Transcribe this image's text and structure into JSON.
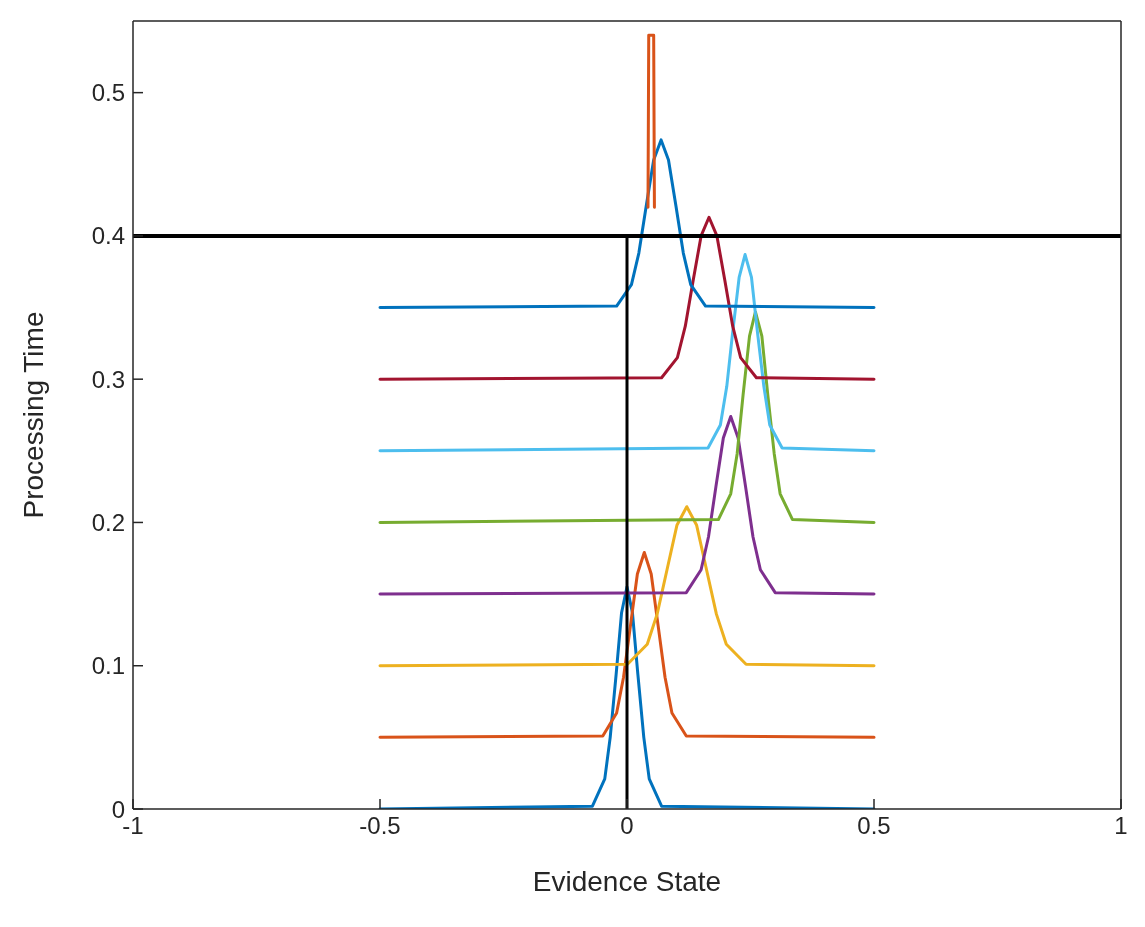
{
  "chart_data": {
    "type": "line",
    "xlabel": "Evidence State",
    "ylabel": "Processing Time",
    "xlim": [
      -1,
      1
    ],
    "xticks": [
      -1,
      -0.5,
      0,
      0.5,
      1
    ],
    "ylim": [
      0,
      0.55
    ],
    "yticks": [
      0,
      0.1,
      0.2,
      0.3,
      0.4,
      0.5
    ],
    "grid": false,
    "legend": false,
    "marker": "none",
    "line_style": "solid",
    "ref_lines": [
      {
        "axis": "y",
        "value": 0.4,
        "color": "#000000"
      }
    ],
    "series": [
      {
        "color": "#0072bd",
        "x": [
          -0.5,
          -0.07,
          -0.045,
          -0.034,
          -0.022,
          -0.011,
          0,
          0.011,
          0.022,
          0.034,
          0.045,
          0.07,
          0.5
        ],
        "values": [
          0,
          0.002,
          0.021,
          0.05,
          0.094,
          0.137,
          0.155,
          0.137,
          0.094,
          0.05,
          0.021,
          0.002,
          0
        ]
      },
      {
        "color": "#d95319",
        "x": [
          -0.5,
          -0.049,
          -0.021,
          -0.007,
          0.007,
          0.021,
          0.035,
          0.049,
          0.063,
          0.077,
          0.091,
          0.12,
          0.5
        ],
        "values": [
          0.05,
          0.051,
          0.067,
          0.092,
          0.128,
          0.164,
          0.179,
          0.164,
          0.128,
          0.092,
          0.067,
          0.051,
          0.05
        ]
      },
      {
        "color": "#edb120",
        "x": [
          -0.5,
          0.001,
          0.041,
          0.061,
          0.081,
          0.101,
          0.121,
          0.141,
          0.161,
          0.181,
          0.201,
          0.241,
          0.5
        ],
        "values": [
          0.1,
          0.101,
          0.115,
          0.136,
          0.167,
          0.198,
          0.211,
          0.198,
          0.167,
          0.136,
          0.115,
          0.101,
          0.1
        ]
      },
      {
        "color": "#7e2f8e",
        "x": [
          -0.5,
          0.12,
          0.15,
          0.165,
          0.18,
          0.195,
          0.21,
          0.225,
          0.24,
          0.255,
          0.27,
          0.3,
          0.5
        ],
        "values": [
          0.15,
          0.151,
          0.167,
          0.19,
          0.225,
          0.259,
          0.274,
          0.259,
          0.225,
          0.19,
          0.167,
          0.151,
          0.15
        ]
      },
      {
        "color": "#77ac30",
        "x": [
          -0.5,
          0.185,
          0.21,
          0.223,
          0.235,
          0.248,
          0.26,
          0.273,
          0.285,
          0.298,
          0.31,
          0.335,
          0.5
        ],
        "values": [
          0.2,
          0.202,
          0.22,
          0.248,
          0.289,
          0.33,
          0.347,
          0.33,
          0.289,
          0.248,
          0.22,
          0.202,
          0.2
        ]
      },
      {
        "color": "#4dbeee",
        "x": [
          -0.5,
          0.164,
          0.189,
          0.202,
          0.214,
          0.227,
          0.239,
          0.252,
          0.264,
          0.277,
          0.289,
          0.314,
          0.5
        ],
        "values": [
          0.25,
          0.252,
          0.268,
          0.295,
          0.333,
          0.371,
          0.387,
          0.371,
          0.333,
          0.295,
          0.268,
          0.252,
          0.25
        ]
      },
      {
        "color": "#a2142f",
        "x": [
          -0.5,
          0.07,
          0.102,
          0.118,
          0.134,
          0.15,
          0.166,
          0.182,
          0.198,
          0.214,
          0.23,
          0.262,
          0.5
        ],
        "values": [
          0.3,
          0.301,
          0.315,
          0.337,
          0.369,
          0.4,
          0.413,
          0.4,
          0.369,
          0.337,
          0.315,
          0.301,
          0.3
        ]
      },
      {
        "color": "#0072bd",
        "x": [
          -0.5,
          -0.021,
          0.009,
          0.024,
          0.039,
          0.054,
          0.069,
          0.084,
          0.099,
          0.114,
          0.129,
          0.159,
          0.5
        ],
        "values": [
          0.35,
          0.351,
          0.366,
          0.388,
          0.421,
          0.453,
          0.467,
          0.453,
          0.421,
          0.388,
          0.366,
          0.351,
          0.35
        ]
      },
      {
        "color": "#d95319",
        "x": [
          0.0425,
          0.044,
          0.054,
          0.0555
        ],
        "values": [
          0.42,
          0.54,
          0.54,
          0.42
        ]
      },
      {
        "color": "#000000",
        "x": [
          0,
          0
        ],
        "values": [
          0,
          0.4
        ]
      }
    ]
  }
}
